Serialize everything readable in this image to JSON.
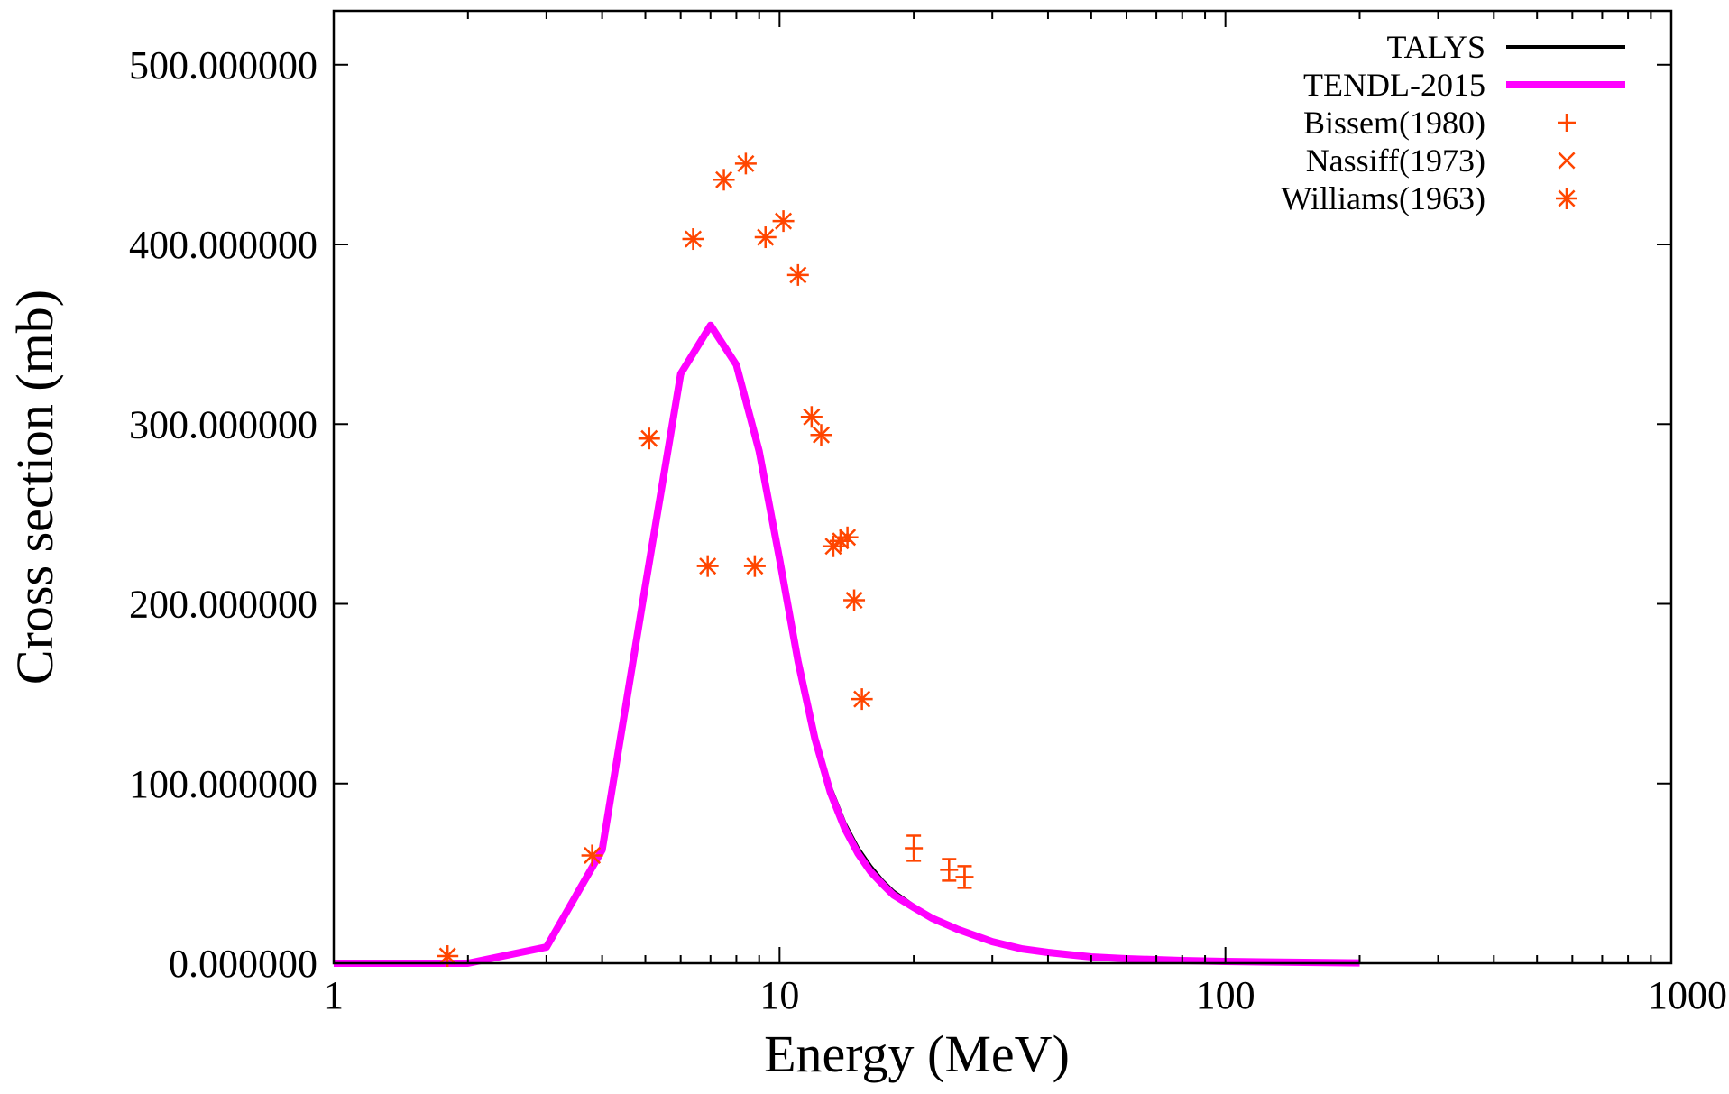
{
  "chart_data": {
    "type": "line",
    "title": "",
    "xlabel": "Energy (MeV)",
    "ylabel": "Cross section (mb)",
    "xscale": "log",
    "xlim": [
      1,
      1000
    ],
    "ylim": [
      0,
      530
    ],
    "grid": false,
    "legend_position": "top-right",
    "x_ticks": [
      1,
      10,
      100,
      1000
    ],
    "x_tick_labels": [
      "1",
      "10",
      "100",
      "1000"
    ],
    "y_ticks": [
      0,
      100,
      200,
      300,
      400,
      500
    ],
    "y_tick_labels": [
      "0.000000",
      "100.000000",
      "200.000000",
      "300.000000",
      "400.000000",
      "500.000000"
    ],
    "series": [
      {
        "name": "TALYS",
        "style": "line",
        "color": "#000000",
        "x": [
          1,
          2,
          3,
          4,
          5,
          6,
          7,
          8,
          9,
          10,
          11,
          12,
          13,
          14,
          15,
          16,
          17,
          18,
          20,
          22,
          25,
          30,
          35,
          40,
          50,
          60,
          80,
          100,
          150,
          200
        ],
        "y": [
          0,
          0,
          9,
          63,
          210,
          328,
          355,
          333,
          285,
          225,
          170,
          128,
          98,
          78,
          64,
          54,
          46,
          40,
          32,
          26,
          19,
          12,
          8,
          6,
          3.5,
          2.5,
          1.5,
          1,
          0.5,
          0.2
        ]
      },
      {
        "name": "TENDL-2015",
        "style": "line",
        "color": "#ff00ff",
        "x": [
          1,
          2,
          3,
          4,
          5,
          6,
          7,
          8,
          9,
          10,
          11,
          12,
          13,
          14,
          15,
          16,
          17,
          18,
          20,
          22,
          25,
          30,
          35,
          40,
          50,
          60,
          80,
          100,
          150,
          200
        ],
        "y": [
          0,
          0,
          9,
          63,
          210,
          328,
          355,
          333,
          285,
          225,
          168,
          125,
          95,
          75,
          61,
          51,
          44,
          38,
          31,
          25,
          19,
          12,
          8,
          6,
          3.5,
          2.5,
          1.5,
          1,
          0.5,
          0.2
        ]
      },
      {
        "name": "Bissem(1980)",
        "style": "points",
        "marker": "plus",
        "color": "#ff4500",
        "x": [
          20,
          24,
          26
        ],
        "y": [
          64,
          52,
          48
        ],
        "yerr": [
          7,
          6,
          6
        ]
      },
      {
        "name": "Nassiff(1973)",
        "style": "points",
        "marker": "cross",
        "color": "#ff4500",
        "x": [],
        "y": []
      },
      {
        "name": "Williams(1963)",
        "style": "points",
        "marker": "star",
        "color": "#ff4500",
        "x": [
          1.8,
          3.8,
          5.1,
          6.4,
          6.9,
          7.5,
          8.4,
          8.8,
          9.3,
          10.2,
          11.0,
          11.8,
          12.4,
          13.2,
          13.7,
          14.2,
          14.7,
          15.3
        ],
        "y": [
          4,
          60,
          292,
          403,
          221,
          436,
          445,
          221,
          404,
          413,
          383,
          304,
          294,
          232,
          235,
          237,
          202,
          147
        ]
      }
    ]
  }
}
